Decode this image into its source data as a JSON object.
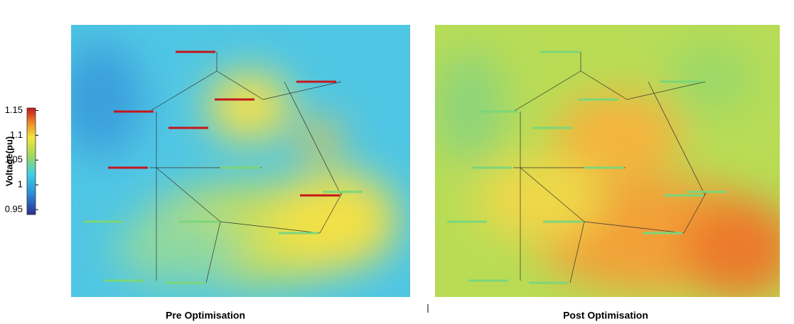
{
  "colorbar": {
    "label": "Voltage(pu)",
    "range": [
      0.94,
      1.155
    ],
    "ticks": [
      0.95,
      1,
      1.05,
      1.1,
      1.15
    ]
  },
  "panels": [
    {
      "caption": "Pre Optimisation"
    },
    {
      "caption": "Post Optimisation"
    }
  ]
}
